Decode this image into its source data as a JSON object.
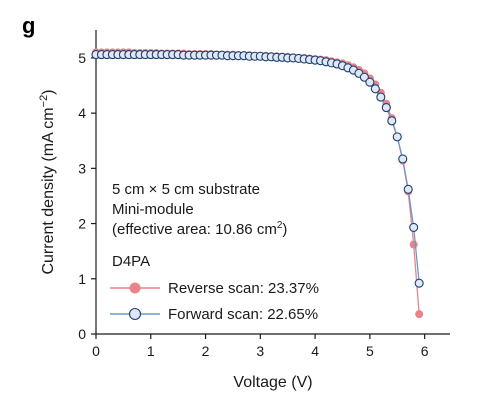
{
  "panel_label": "g",
  "chart_data": {
    "type": "line",
    "xlabel": "Voltage (V)",
    "ylabel_main": "Current density (mA cm",
    "ylabel_sup": "−2",
    "ylabel_end": ")",
    "xlim": [
      0,
      6.2
    ],
    "ylim": [
      0,
      5.5
    ],
    "xticks": [
      0,
      1,
      2,
      3,
      4,
      5,
      6
    ],
    "yticks": [
      0,
      1,
      2,
      3,
      4,
      5
    ],
    "grid": false,
    "annotations": {
      "line1": "5 cm × 5 cm substrate",
      "line2": "Mini-module",
      "line3_main": "(effective area: 10.86 cm",
      "line3_sup": "2",
      "line3_end": ")"
    },
    "legend_title": "D4PA",
    "legend_placement": "lower-left",
    "series": [
      {
        "name": "Reverse scan: 23.37%",
        "color": "#e8848a",
        "marker": "filled-circle",
        "x": [
          0.0,
          0.1,
          0.2,
          0.3,
          0.4,
          0.5,
          0.6,
          0.7,
          0.8,
          0.9,
          1.0,
          1.1,
          1.2,
          1.3,
          1.4,
          1.5,
          1.6,
          1.7,
          1.8,
          1.9,
          2.0,
          2.1,
          2.2,
          2.3,
          2.4,
          2.5,
          2.6,
          2.7,
          2.8,
          2.9,
          3.0,
          3.1,
          3.2,
          3.3,
          3.4,
          3.5,
          3.6,
          3.7,
          3.8,
          3.9,
          4.0,
          4.1,
          4.2,
          4.3,
          4.4,
          4.5,
          4.6,
          4.7,
          4.8,
          4.9,
          5.0,
          5.1,
          5.2,
          5.3,
          5.4,
          5.5,
          5.6,
          5.7,
          5.8,
          5.9
        ],
        "y": [
          5.1,
          5.1,
          5.1,
          5.1,
          5.1,
          5.1,
          5.1,
          5.09,
          5.09,
          5.09,
          5.09,
          5.09,
          5.08,
          5.08,
          5.08,
          5.08,
          5.08,
          5.07,
          5.07,
          5.07,
          5.07,
          5.07,
          5.06,
          5.06,
          5.06,
          5.06,
          5.05,
          5.05,
          5.05,
          5.04,
          5.04,
          5.04,
          5.03,
          5.03,
          5.02,
          5.02,
          5.01,
          5.0,
          5.0,
          4.99,
          4.98,
          4.97,
          4.96,
          4.94,
          4.92,
          4.9,
          4.87,
          4.83,
          4.78,
          4.72,
          4.63,
          4.52,
          4.37,
          4.17,
          3.91,
          3.57,
          3.14,
          2.58,
          1.62,
          0.36
        ]
      },
      {
        "name": "Forward scan: 22.65%",
        "color": "#6f98c8",
        "marker": "open-circle",
        "x": [
          0.0,
          0.1,
          0.2,
          0.3,
          0.4,
          0.5,
          0.6,
          0.7,
          0.8,
          0.9,
          1.0,
          1.1,
          1.2,
          1.3,
          1.4,
          1.5,
          1.6,
          1.7,
          1.8,
          1.9,
          2.0,
          2.1,
          2.2,
          2.3,
          2.4,
          2.5,
          2.6,
          2.7,
          2.8,
          2.9,
          3.0,
          3.1,
          3.2,
          3.3,
          3.4,
          3.5,
          3.6,
          3.7,
          3.8,
          3.9,
          4.0,
          4.1,
          4.2,
          4.3,
          4.4,
          4.5,
          4.6,
          4.7,
          4.8,
          4.9,
          5.0,
          5.1,
          5.2,
          5.3,
          5.4,
          5.5,
          5.6,
          5.7,
          5.8,
          5.9
        ],
        "y": [
          5.06,
          5.06,
          5.06,
          5.06,
          5.06,
          5.06,
          5.06,
          5.06,
          5.06,
          5.06,
          5.06,
          5.06,
          5.06,
          5.06,
          5.06,
          5.06,
          5.05,
          5.05,
          5.05,
          5.05,
          5.05,
          5.05,
          5.05,
          5.05,
          5.04,
          5.04,
          5.04,
          5.04,
          5.03,
          5.03,
          5.03,
          5.02,
          5.02,
          5.01,
          5.01,
          5.0,
          5.0,
          4.99,
          4.98,
          4.97,
          4.96,
          4.95,
          4.93,
          4.91,
          4.89,
          4.86,
          4.82,
          4.78,
          4.72,
          4.65,
          4.56,
          4.44,
          4.29,
          4.1,
          3.86,
          3.57,
          3.17,
          2.62,
          1.93,
          0.92
        ]
      }
    ]
  }
}
